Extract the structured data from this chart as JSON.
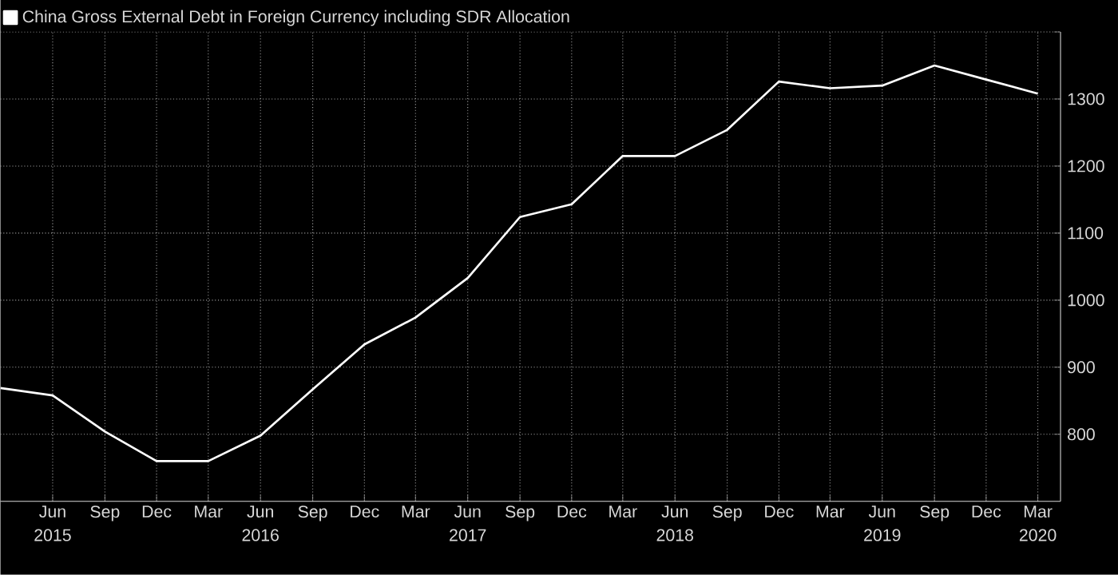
{
  "chart_data": {
    "type": "line",
    "x": [
      "2015-03",
      "2015-06",
      "2015-09",
      "2015-12",
      "2016-03",
      "2016-06",
      "2016-09",
      "2016-12",
      "2017-03",
      "2017-06",
      "2017-09",
      "2017-12",
      "2018-03",
      "2018-06",
      "2018-09",
      "2018-12",
      "2019-03",
      "2019-06",
      "2019-09",
      "2019-12",
      "2020-03"
    ],
    "series": [
      {
        "name": "China Gross External Debt in Foreign Currency including SDR Allocation",
        "color": "#ffffff",
        "values": [
          869,
          858,
          804,
          760,
          760,
          798,
          867,
          934,
          974,
          1033,
          1124,
          1143,
          1215,
          1215,
          1254,
          1326,
          1316,
          1320,
          1350,
          1329,
          1308
        ]
      }
    ],
    "xlim": [
      "2015-03",
      "2020-04-10"
    ],
    "xticks": [
      {
        "value": "2015-06",
        "label": "Jun"
      },
      {
        "value": "2015-09",
        "label": "Sep"
      },
      {
        "value": "2015-12",
        "label": "Dec"
      },
      {
        "value": "2016-03",
        "label": "Mar"
      },
      {
        "value": "2016-06",
        "label": "Jun"
      },
      {
        "value": "2016-09",
        "label": "Sep"
      },
      {
        "value": "2016-12",
        "label": "Dec"
      },
      {
        "value": "2017-03",
        "label": "Mar"
      },
      {
        "value": "2017-06",
        "label": "Jun"
      },
      {
        "value": "2017-09",
        "label": "Sep"
      },
      {
        "value": "2017-12",
        "label": "Dec"
      },
      {
        "value": "2018-03",
        "label": "Mar"
      },
      {
        "value": "2018-06",
        "label": "Jun"
      },
      {
        "value": "2018-09",
        "label": "Sep"
      },
      {
        "value": "2018-12",
        "label": "Dec"
      },
      {
        "value": "2019-03",
        "label": "Mar"
      },
      {
        "value": "2019-06",
        "label": "Jun"
      },
      {
        "value": "2019-09",
        "label": "Sep"
      },
      {
        "value": "2019-12",
        "label": "Dec"
      },
      {
        "value": "2020-03",
        "label": "Mar"
      }
    ],
    "x2lim": [
      "2015-03",
      "2020-04-10"
    ],
    "x2ticks": [
      {
        "value": "2015-06",
        "label": "2015"
      },
      {
        "value": "2016-06",
        "label": "2016"
      },
      {
        "value": "2017-06",
        "label": "2017"
      },
      {
        "value": "2018-06",
        "label": "2018"
      },
      {
        "value": "2019-06",
        "label": "2019"
      },
      {
        "value": "2020-03",
        "label": "2020"
      }
    ],
    "ylim": [
      700,
      1400
    ],
    "yticks": [
      800,
      900,
      1000,
      1100,
      1200,
      1300,
      {
        "value": 1400,
        "label": null
      }
    ],
    "grid": true,
    "legend": "top left",
    "line_style": "solid",
    "marker": "none"
  }
}
